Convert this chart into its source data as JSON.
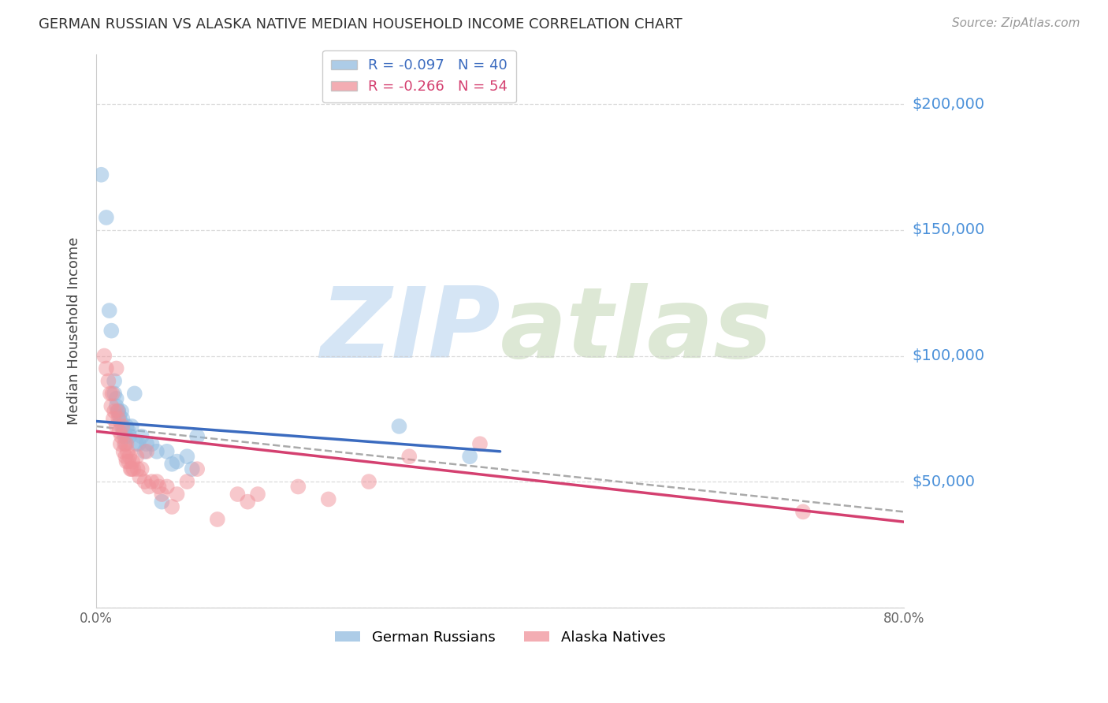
{
  "title": "GERMAN RUSSIAN VS ALASKA NATIVE MEDIAN HOUSEHOLD INCOME CORRELATION CHART",
  "source": "Source: ZipAtlas.com",
  "ylabel": "Median Household Income",
  "yticks": [
    0,
    50000,
    100000,
    150000,
    200000
  ],
  "ytick_labels": [
    "",
    "$50,000",
    "$100,000",
    "$150,000",
    "$200,000"
  ],
  "ylim": [
    0,
    220000
  ],
  "xlim": [
    0.0,
    0.8
  ],
  "legend_label1": "German Russians",
  "legend_label2": "Alaska Natives",
  "blue_color": "#92bce0",
  "pink_color": "#f0929a",
  "blue_line_color": "#3b6bbf",
  "pink_line_color": "#d44070",
  "dashed_line_color": "#aaaaaa",
  "right_label_color": "#4a90d9",
  "watermark_color": "#d5e5f5",
  "background_color": "#ffffff",
  "grid_color": "#cccccc",
  "blue_dots_x": [
    0.005,
    0.01,
    0.013,
    0.015,
    0.018,
    0.018,
    0.02,
    0.02,
    0.022,
    0.022,
    0.023,
    0.024,
    0.025,
    0.025,
    0.026,
    0.027,
    0.028,
    0.029,
    0.03,
    0.03,
    0.032,
    0.033,
    0.035,
    0.038,
    0.04,
    0.042,
    0.045,
    0.048,
    0.05,
    0.055,
    0.06,
    0.065,
    0.07,
    0.075,
    0.08,
    0.09,
    0.095,
    0.1,
    0.3,
    0.37
  ],
  "blue_dots_y": [
    172000,
    155000,
    118000,
    110000,
    90000,
    85000,
    83000,
    80000,
    78000,
    78000,
    76000,
    74000,
    78000,
    72000,
    75000,
    70000,
    68000,
    65000,
    72000,
    68000,
    70000,
    68000,
    72000,
    85000,
    65000,
    65000,
    68000,
    62000,
    65000,
    65000,
    62000,
    42000,
    62000,
    57000,
    58000,
    60000,
    55000,
    68000,
    72000,
    60000
  ],
  "pink_dots_x": [
    0.008,
    0.01,
    0.012,
    0.014,
    0.015,
    0.016,
    0.017,
    0.018,
    0.02,
    0.02,
    0.021,
    0.022,
    0.023,
    0.024,
    0.025,
    0.026,
    0.027,
    0.028,
    0.029,
    0.03,
    0.03,
    0.031,
    0.032,
    0.033,
    0.034,
    0.035,
    0.036,
    0.037,
    0.04,
    0.041,
    0.043,
    0.045,
    0.048,
    0.05,
    0.052,
    0.055,
    0.06,
    0.062,
    0.065,
    0.07,
    0.075,
    0.08,
    0.09,
    0.1,
    0.12,
    0.14,
    0.15,
    0.16,
    0.2,
    0.23,
    0.27,
    0.31,
    0.38,
    0.7
  ],
  "pink_dots_y": [
    100000,
    95000,
    90000,
    85000,
    80000,
    85000,
    75000,
    78000,
    95000,
    72000,
    78000,
    75000,
    70000,
    65000,
    68000,
    72000,
    62000,
    65000,
    60000,
    65000,
    58000,
    62000,
    58000,
    60000,
    55000,
    55000,
    58000,
    55000,
    60000,
    55000,
    52000,
    55000,
    50000,
    62000,
    48000,
    50000,
    50000,
    48000,
    45000,
    48000,
    40000,
    45000,
    50000,
    55000,
    35000,
    45000,
    42000,
    45000,
    48000,
    43000,
    50000,
    60000,
    65000,
    38000
  ],
  "blue_line_x0": 0.0,
  "blue_line_y0": 74000,
  "blue_line_x1": 0.4,
  "blue_line_y1": 62000,
  "pink_line_x0": 0.0,
  "pink_line_y0": 70000,
  "pink_line_x1": 0.8,
  "pink_line_y1": 34000,
  "dash_line_x0": 0.0,
  "dash_line_y0": 72000,
  "dash_line_x1": 0.8,
  "dash_line_y1": 38000
}
